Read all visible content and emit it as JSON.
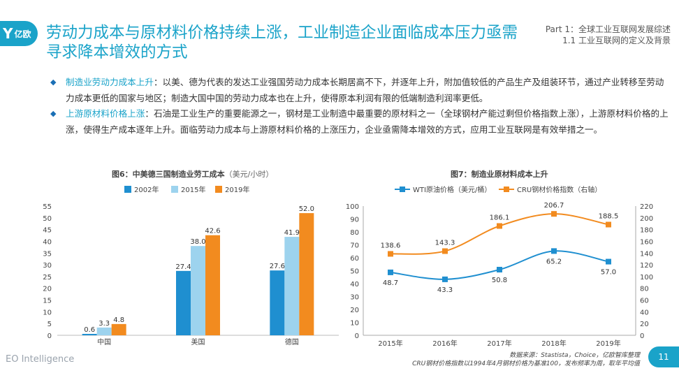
{
  "header": {
    "logo_mark": "Y",
    "logo_text": "亿欧",
    "title": "劳动力成本与原材料价格持续上涨，工业制造企业面临成本压力亟需寻求降本增效的方式",
    "part_line1": "Part 1：全球工业互联网发展综述",
    "part_line2": "1.1 工业互联网的定义及背景"
  },
  "bullets": [
    {
      "key": "制造业劳动力成本上升",
      "text": "：以美、德为代表的发达工业强国劳动力成本长期居高不下，并逐年上升，附加值较低的产品生产及组装环节，通过产业转移至劳动力成本更低的国家与地区；制造大国中国的劳动力成本也在上升，使得原本利润有限的低端制造利润率更低。"
    },
    {
      "key": "上游原材料价格上涨",
      "text": "：石油是工业生产的重要能源之一，钢材是工业制造中最重要的原材料之一（全球钢材产能过剩但价格指数上涨），上游原材料价格的上涨，使得生产成本逐年上升。面临劳动力成本与上游原材料价格的上涨压力，企业亟需降本增效的方式，应用工业互联网是有效举措之一。"
    }
  ],
  "colors": {
    "accent": "#1aa3c9",
    "bar2002": "#1f8fd0",
    "bar2015": "#9dd3ee",
    "bar2019": "#f28b1f",
    "wti": "#1f8fd0",
    "cru": "#f28b1f"
  },
  "chart_data": [
    {
      "type": "bar",
      "title": "图6：中美德三国制造业劳工成本",
      "unit": "（美元/小时）",
      "categories": [
        "中国",
        "美国",
        "德国"
      ],
      "series": [
        {
          "name": "2002年",
          "values": [
            0.6,
            27.4,
            27.6
          ]
        },
        {
          "name": "2015年",
          "values": [
            3.3,
            38.0,
            41.9
          ]
        },
        {
          "name": "2019年",
          "values": [
            4.8,
            42.6,
            52.0
          ]
        }
      ],
      "ylim": [
        0,
        55
      ],
      "yticks": [
        0,
        5,
        10,
        15,
        20,
        25,
        30,
        35,
        40,
        45,
        50,
        55
      ],
      "legend": "top",
      "grid": false
    },
    {
      "type": "line",
      "title": "图7：制造业原材料成本上升",
      "x": [
        "2015年",
        "2016年",
        "2017年",
        "2018年",
        "2019年"
      ],
      "series": [
        {
          "name": "WTI原油价格（美元/桶）",
          "axis": "left",
          "values": [
            48.7,
            43.3,
            50.8,
            65.2,
            57.0
          ]
        },
        {
          "name": "CRU钢材价格指数（右轴）",
          "axis": "right",
          "values": [
            138.6,
            143.3,
            186.1,
            206.7,
            188.5
          ]
        }
      ],
      "ylim": [
        0,
        100
      ],
      "yticks": [
        0,
        10,
        20,
        30,
        40,
        50,
        60,
        70,
        80,
        90,
        100
      ],
      "y2lim": [
        0,
        220
      ],
      "y2ticks": [
        0,
        20,
        40,
        60,
        80,
        100,
        120,
        140,
        160,
        180,
        200,
        220
      ],
      "legend": "top",
      "grid": false
    }
  ],
  "footer": {
    "brand": "EO Intelligence",
    "source_line1": "数据来源：Stastista，Choice，亿欧智库整理",
    "source_line2": "CRU钢材价格指数以1994年4月钢材价格为基准100，发布频率为周，取年平均值",
    "page": "11"
  }
}
